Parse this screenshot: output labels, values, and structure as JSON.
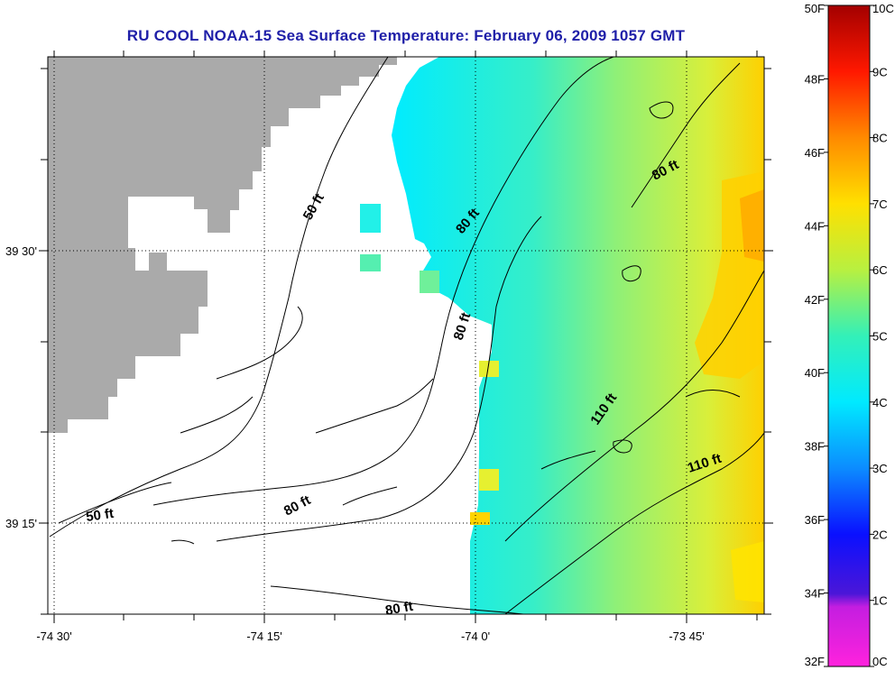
{
  "title": "RU COOL  NOAA-15  Sea Surface Temperature:  February 06, 2009 1057 GMT",
  "x_axis": {
    "ticks": [
      {
        "label": "-74 30'",
        "lon": -74.5
      },
      {
        "label": "-74 15'",
        "lon": -74.25
      },
      {
        "label": "-74 0'",
        "lon": -74.0
      },
      {
        "label": "-73 45'",
        "lon": -73.75
      }
    ]
  },
  "y_axis": {
    "ticks": [
      {
        "label": "39 30'",
        "lat": 39.5
      },
      {
        "label": "39 15'",
        "lat": 39.25
      }
    ]
  },
  "contour_labels": [
    {
      "text": "50 ft"
    },
    {
      "text": "50 ft"
    },
    {
      "text": "80 ft"
    },
    {
      "text": "80 ft"
    },
    {
      "text": "80 ft"
    },
    {
      "text": "80 ft"
    },
    {
      "text": "80 ft"
    },
    {
      "text": "110 ft"
    },
    {
      "text": "110 ft"
    }
  ],
  "colorbar": {
    "fahrenheit": [
      "50F",
      "48F",
      "46F",
      "44F",
      "42F",
      "40F",
      "38F",
      "36F",
      "34F",
      "32F"
    ],
    "celsius": [
      "10C",
      "9C",
      "8C",
      "7C",
      "6C",
      "5C",
      "4C",
      "3C",
      "2C",
      "1C",
      "0C"
    ]
  },
  "colors": {
    "land": "#aaaaaa",
    "title": "#1f1fa8",
    "sst_cold": "#00e8ff",
    "sst_mid": "#7fe87f",
    "sst_warm": "#ffd200"
  }
}
